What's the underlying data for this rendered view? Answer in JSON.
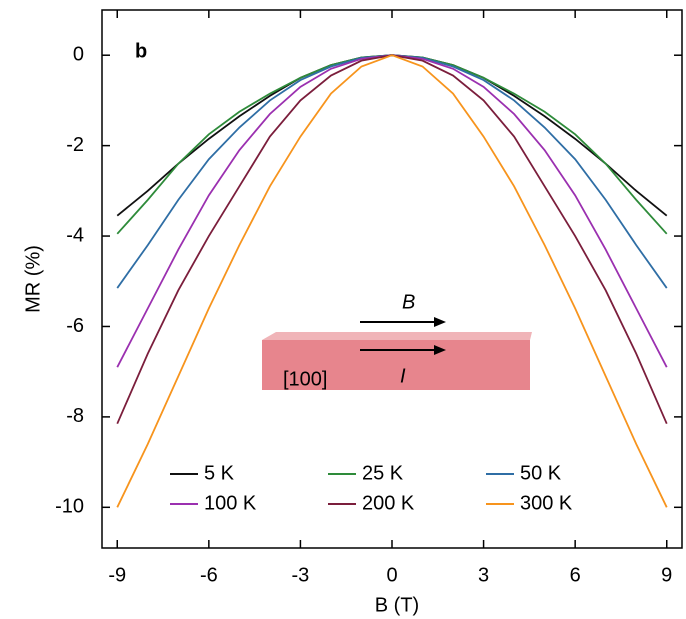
{
  "chart_data": {
    "type": "line",
    "panel_label": "b",
    "x_label": "B (T)",
    "y_label": "MR (%)",
    "annotations": [
      "B",
      "I",
      "[100]"
    ],
    "x": [
      -9,
      -8,
      -7,
      -6,
      -5,
      -4,
      -3,
      -2,
      -1,
      0,
      1,
      2,
      3,
      4,
      5,
      6,
      7,
      8,
      9
    ],
    "series": [
      {
        "name": "5 K",
        "color": "#111111",
        "values": [
          -3.55,
          -3.0,
          -2.4,
          -1.85,
          -1.35,
          -0.9,
          -0.5,
          -0.22,
          -0.05,
          0,
          -0.05,
          -0.22,
          -0.5,
          -0.9,
          -1.35,
          -1.85,
          -2.4,
          -3.0,
          -3.55
        ]
      },
      {
        "name": "25 K",
        "color": "#2e8b3a",
        "values": [
          -3.95,
          -3.2,
          -2.4,
          -1.75,
          -1.25,
          -0.85,
          -0.5,
          -0.22,
          -0.05,
          0,
          -0.05,
          -0.22,
          -0.5,
          -0.85,
          -1.25,
          -1.75,
          -2.4,
          -3.2,
          -3.95
        ]
      },
      {
        "name": "50 K",
        "color": "#2f6ea5",
        "values": [
          -5.15,
          -4.2,
          -3.2,
          -2.3,
          -1.6,
          -1.0,
          -0.55,
          -0.25,
          -0.06,
          0,
          -0.06,
          -0.25,
          -0.55,
          -1.0,
          -1.6,
          -2.3,
          -3.2,
          -4.2,
          -5.15
        ]
      },
      {
        "name": "100 K",
        "color": "#9b30b0",
        "values": [
          -6.9,
          -5.6,
          -4.3,
          -3.1,
          -2.1,
          -1.3,
          -0.7,
          -0.3,
          -0.08,
          0,
          -0.08,
          -0.3,
          -0.7,
          -1.3,
          -2.1,
          -3.1,
          -4.3,
          -5.6,
          -6.9
        ]
      },
      {
        "name": "200 K",
        "color": "#7b1e3c",
        "values": [
          -8.15,
          -6.6,
          -5.2,
          -4.0,
          -2.9,
          -1.8,
          -1.0,
          -0.45,
          -0.12,
          0,
          -0.12,
          -0.45,
          -1.0,
          -1.8,
          -2.9,
          -4.0,
          -5.2,
          -6.6,
          -8.15
        ]
      },
      {
        "name": "300 K",
        "color": "#f7941d",
        "values": [
          -10,
          -8.6,
          -7.1,
          -5.6,
          -4.2,
          -2.9,
          -1.8,
          -0.85,
          -0.25,
          0,
          -0.25,
          -0.85,
          -1.8,
          -2.9,
          -4.2,
          -5.6,
          -7.1,
          -8.6,
          -10
        ]
      }
    ],
    "xlim": [
      -9.5,
      9.5
    ],
    "ylim": [
      -10.9,
      1
    ],
    "xticks": [
      -9,
      -6,
      -3,
      0,
      3,
      6,
      9
    ],
    "yticks": [
      0,
      -2,
      -4,
      -6,
      -8,
      -10
    ]
  }
}
